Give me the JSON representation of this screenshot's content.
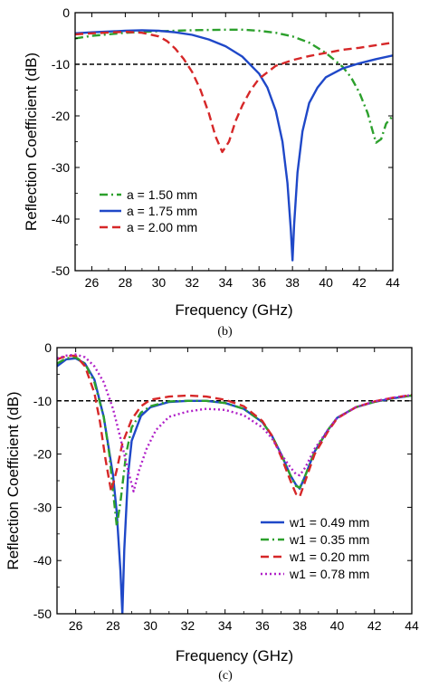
{
  "chart_data": [
    {
      "type": "line",
      "caption": "(b)",
      "xlabel": "Frequency (GHz)",
      "ylabel": "Reflection Coefficient (dB)",
      "xlim": [
        25,
        44
      ],
      "ylim": [
        -50,
        0
      ],
      "xticks": [
        26,
        28,
        30,
        32,
        34,
        36,
        38,
        40,
        42,
        44
      ],
      "yticks": [
        0,
        -10,
        -20,
        -30,
        -40,
        -50
      ],
      "grid": false,
      "legend_position": "lower-left",
      "reference_line": {
        "y": -10,
        "style": "dashed",
        "color": "#000000"
      },
      "series": [
        {
          "name": "a = 1.50 mm",
          "color": "#2ca02c",
          "style": "dashdot",
          "x": [
            25,
            26,
            28,
            30,
            32,
            34,
            35,
            36,
            37,
            38,
            39,
            40,
            41,
            41.5,
            42,
            42.5,
            42.8,
            43,
            43.3,
            43.6,
            44
          ],
          "y": [
            -5,
            -4.5,
            -3.9,
            -3.6,
            -3.4,
            -3.3,
            -3.3,
            -3.5,
            -3.9,
            -4.6,
            -5.8,
            -7.8,
            -10.5,
            -12.5,
            -15.5,
            -19.5,
            -23,
            -25.2,
            -24.5,
            -21.5,
            -20
          ]
        },
        {
          "name": "a = 1.75 mm",
          "color": "#1f48c8",
          "style": "solid",
          "x": [
            25,
            26,
            28,
            29,
            30,
            31,
            32,
            33,
            34,
            35,
            36,
            36.5,
            37,
            37.4,
            37.7,
            37.9,
            38,
            38.1,
            38.3,
            38.6,
            39,
            39.5,
            40,
            41,
            42,
            43,
            44
          ],
          "y": [
            -4,
            -3.8,
            -3.5,
            -3.4,
            -3.5,
            -3.8,
            -4.3,
            -5.2,
            -6.5,
            -8.5,
            -11.8,
            -14.5,
            -19,
            -25,
            -33,
            -42,
            -48,
            -41,
            -31,
            -23,
            -17.5,
            -14.5,
            -12.5,
            -10.8,
            -9.8,
            -9,
            -8.3
          ]
        },
        {
          "name": "a = 2.00 mm",
          "color": "#d62728",
          "style": "dashed",
          "x": [
            25,
            26,
            28,
            29,
            30,
            30.5,
            31,
            31.5,
            32,
            32.5,
            33,
            33.4,
            33.8,
            34.2,
            34.6,
            35,
            35.5,
            36,
            37,
            38,
            39,
            40,
            41,
            42,
            43,
            44
          ],
          "y": [
            -4.2,
            -4,
            -3.7,
            -3.9,
            -4.6,
            -5.5,
            -7,
            -9,
            -11.5,
            -15,
            -19.5,
            -24,
            -27,
            -25,
            -21,
            -18,
            -15,
            -12.8,
            -10.3,
            -9.2,
            -8.4,
            -7.8,
            -7.2,
            -6.8,
            -6.3,
            -5.8
          ]
        }
      ]
    },
    {
      "type": "line",
      "caption": "(c)",
      "xlabel": "Frequency (GHz)",
      "ylabel": "Reflection Coefficient (dB)",
      "xlim": [
        25,
        44
      ],
      "ylim": [
        -50,
        0
      ],
      "xticks": [
        26,
        28,
        30,
        32,
        34,
        36,
        38,
        40,
        42,
        44
      ],
      "yticks": [
        0,
        -10,
        -20,
        -30,
        -40,
        -50
      ],
      "grid": false,
      "legend_position": "lower-right",
      "reference_line": {
        "y": -10,
        "style": "dashed",
        "color": "#000000"
      },
      "series": [
        {
          "name": "w1 = 0.49 mm",
          "color": "#1f48c8",
          "style": "solid",
          "x": [
            25,
            25.5,
            26,
            26.5,
            27,
            27.5,
            28,
            28.2,
            28.4,
            28.5,
            28.6,
            28.8,
            29,
            29.5,
            30,
            31,
            32,
            33,
            34,
            35,
            36,
            36.5,
            37,
            37.5,
            37.8,
            38,
            38.3,
            38.8,
            39.5,
            40,
            41,
            42,
            43,
            44
          ],
          "y": [
            -3.5,
            -2.2,
            -2,
            -3,
            -6,
            -13,
            -24,
            -31,
            -42,
            -50,
            -38,
            -24,
            -17.5,
            -12.8,
            -11.2,
            -10.2,
            -10,
            -10,
            -10.4,
            -11.5,
            -14,
            -16.5,
            -20,
            -24,
            -25.8,
            -26.5,
            -24,
            -19.5,
            -15.5,
            -13.2,
            -11.2,
            -10.2,
            -9.5,
            -9
          ]
        },
        {
          "name": "w1 = 0.35 mm",
          "color": "#2ca02c",
          "style": "dashdot",
          "x": [
            25,
            25.5,
            26,
            26.5,
            27,
            27.5,
            27.8,
            28,
            28.2,
            28.4,
            28.7,
            29,
            29.5,
            30,
            31,
            32,
            33,
            34,
            35,
            36,
            36.5,
            37,
            37.5,
            37.8,
            38,
            38.3,
            38.8,
            39.5,
            40,
            41,
            42,
            43,
            44
          ],
          "y": [
            -3,
            -2,
            -1.8,
            -3,
            -6.5,
            -13,
            -20,
            -27,
            -33.5,
            -29,
            -20,
            -15,
            -12.2,
            -11,
            -10.1,
            -10,
            -10,
            -10.4,
            -11.5,
            -14,
            -16.5,
            -20,
            -24,
            -26,
            -26.3,
            -24,
            -19.5,
            -15.5,
            -13.2,
            -11.2,
            -10.2,
            -9.5,
            -9
          ]
        },
        {
          "name": "w1 = 0.20 mm",
          "color": "#d62728",
          "style": "dashed",
          "x": [
            25,
            25.5,
            26,
            26.5,
            27,
            27.3,
            27.6,
            27.9,
            28.2,
            28.5,
            29,
            29.5,
            30,
            31,
            32,
            33,
            34,
            35,
            36,
            36.5,
            37,
            37.5,
            37.8,
            38,
            38.3,
            38.8,
            39.5,
            40,
            41,
            42,
            43,
            44
          ],
          "y": [
            -2.2,
            -1.6,
            -1.5,
            -3.5,
            -8.5,
            -14,
            -21,
            -27,
            -23,
            -18,
            -13.5,
            -11,
            -9.8,
            -9.2,
            -9,
            -9.2,
            -9.8,
            -11,
            -13.8,
            -16.5,
            -20.5,
            -25,
            -27.5,
            -28,
            -25,
            -20,
            -15.8,
            -13.3,
            -11.2,
            -10.1,
            -9.4,
            -8.9
          ]
        },
        {
          "name": "w1 = 0.78 mm",
          "color": "#b020c8",
          "style": "dotted",
          "x": [
            25,
            25.5,
            26,
            26.5,
            27,
            27.5,
            28,
            28.4,
            28.8,
            29.1,
            29.4,
            29.8,
            30.3,
            31,
            32,
            33,
            34,
            35,
            36,
            36.5,
            37,
            37.5,
            37.8,
            38,
            38.3,
            38.8,
            39.5,
            40,
            41,
            42,
            43,
            44
          ],
          "y": [
            -2,
            -1.5,
            -1.3,
            -1.8,
            -3.5,
            -6.5,
            -11.5,
            -17,
            -23,
            -27,
            -23,
            -19,
            -15.5,
            -13,
            -12,
            -11.5,
            -11.7,
            -12.7,
            -15,
            -17,
            -20,
            -22.5,
            -23.8,
            -24,
            -22.5,
            -19,
            -15.5,
            -13.2,
            -11.2,
            -10.1,
            -9.4,
            -8.9
          ]
        }
      ]
    }
  ]
}
